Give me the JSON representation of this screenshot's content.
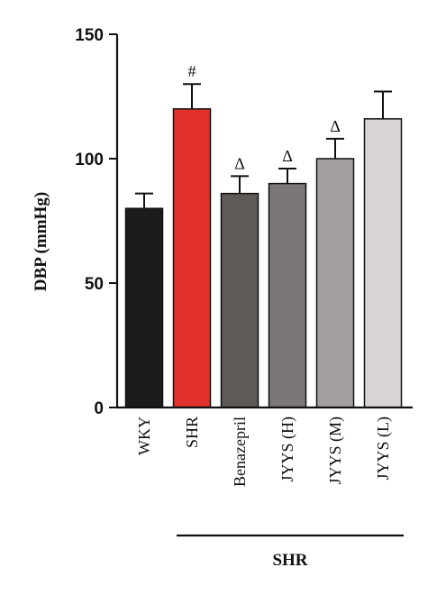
{
  "chart_data": {
    "type": "bar",
    "ylabel": "DBP (mmHg)",
    "ylim": [
      0,
      150
    ],
    "yticks": [
      0,
      50,
      100,
      150
    ],
    "categories": [
      "WKY",
      "SHR",
      "Benazepril",
      "JYYS (H)",
      "JYYS (M)",
      "JYYS (L)"
    ],
    "values": [
      80,
      120,
      86,
      90,
      100,
      116
    ],
    "errors": [
      6,
      10,
      7,
      6,
      8,
      11
    ],
    "annotations": [
      "",
      "#",
      "Δ",
      "Δ",
      "Δ",
      ""
    ],
    "colors": [
      "#1c1c1a",
      "#e1302b",
      "#5e5a58",
      "#7b7776",
      "#a39fa0",
      "#d8d4d3"
    ],
    "group_label": "SHR",
    "grid": false,
    "legend": "none"
  }
}
